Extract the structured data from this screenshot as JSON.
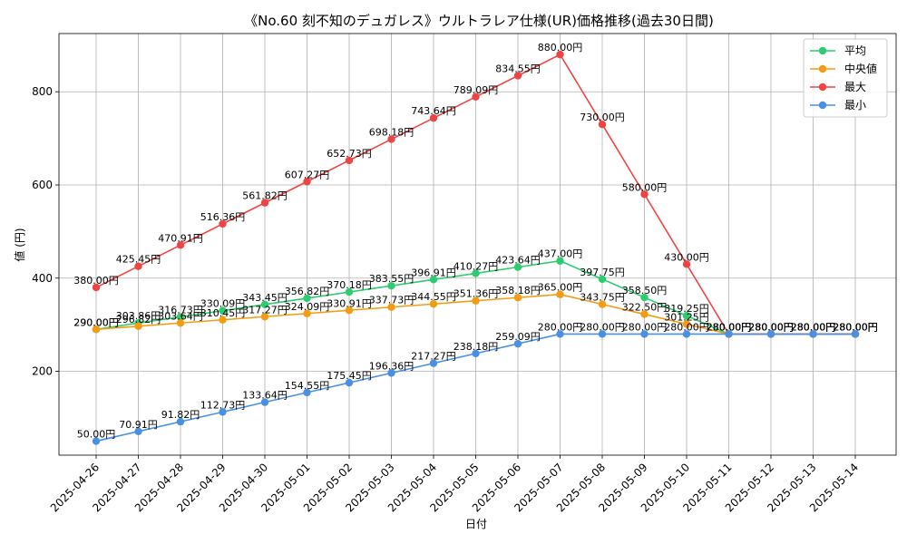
{
  "chart_data": {
    "type": "line",
    "title": "《No.60 刻不知のデュガレス》ウルトラレア仕様(UR)価格推移(過去30日間)",
    "xlabel": "日付",
    "ylabel": "値 (円)",
    "ylim": [
      20,
      925
    ],
    "yticks": [
      200,
      400,
      600,
      800
    ],
    "grid": true,
    "legend_position": "top-right",
    "label_suffix": "円",
    "x": [
      "2025-04-26",
      "2025-04-27",
      "2025-04-28",
      "2025-04-29",
      "2025-04-30",
      "2025-05-01",
      "2025-05-02",
      "2025-05-03",
      "2025-05-04",
      "2025-05-05",
      "2025-05-06",
      "2025-05-07",
      "2025-05-08",
      "2025-05-09",
      "2025-05-10",
      "2025-05-11",
      "2025-05-12",
      "2025-05-13",
      "2025-05-14"
    ],
    "series": [
      {
        "name": "平均",
        "color": "#2ecc71",
        "values": [
          290.0,
          303.86,
          316.73,
          330.09,
          343.45,
          356.82,
          370.18,
          383.55,
          396.91,
          410.27,
          423.64,
          437.0,
          397.75,
          358.5,
          319.25,
          280.0,
          280.0,
          280.0,
          280.0
        ]
      },
      {
        "name": "中央値",
        "color": "#f39c12",
        "values": [
          290.0,
          296.82,
          303.64,
          310.45,
          317.27,
          324.09,
          330.91,
          337.73,
          344.55,
          351.36,
          358.18,
          365.0,
          343.75,
          322.5,
          301.25,
          280.0,
          280.0,
          280.0,
          280.0
        ]
      },
      {
        "name": "最大",
        "color": "#ef4444",
        "values": [
          380.0,
          425.45,
          470.91,
          516.36,
          561.82,
          607.27,
          652.73,
          698.18,
          743.64,
          789.09,
          834.55,
          880.0,
          730.0,
          580.0,
          430.0,
          280.0,
          280.0,
          280.0,
          280.0
        ]
      },
      {
        "name": "最小",
        "color": "#4a90e2",
        "values": [
          50.0,
          70.91,
          91.82,
          112.73,
          133.64,
          154.55,
          175.45,
          196.36,
          217.27,
          238.18,
          259.09,
          280.0,
          280.0,
          280.0,
          280.0,
          280.0,
          280.0,
          280.0,
          280.0
        ]
      }
    ]
  }
}
